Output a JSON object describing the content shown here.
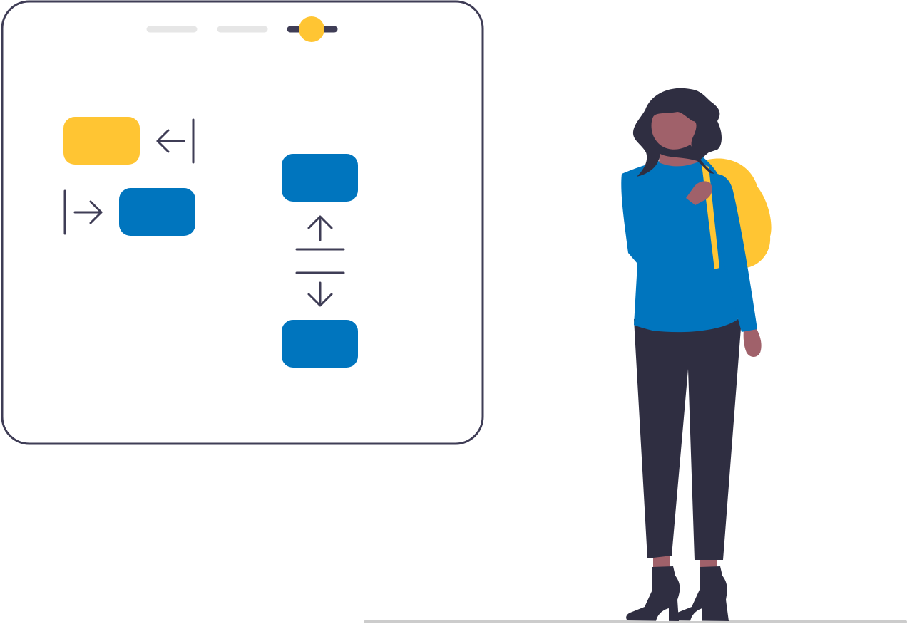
{
  "colors": {
    "frame_stroke": "#3f3d56",
    "frame_fill": "#ffffff",
    "accent_yellow": "#ffc533",
    "accent_blue": "#0075be",
    "muted_gray": "#e6e6e6",
    "dark_ink": "#2f2e41",
    "skin": "#a0616a",
    "floor": "#cccccc"
  },
  "illustration": {
    "board": {
      "slider": {
        "segments": 3,
        "active_segment": 3
      },
      "blocks": [
        {
          "id": "yellow-block",
          "color": "accent_yellow"
        },
        {
          "id": "blue-block-left",
          "color": "accent_blue"
        },
        {
          "id": "blue-block-top",
          "color": "accent_blue"
        },
        {
          "id": "blue-block-bottom",
          "color": "accent_blue"
        }
      ],
      "icons": [
        "arrow-left-to-bar-icon",
        "arrow-right-from-bar-icon",
        "arrow-up-from-line-icon",
        "arrow-down-from-line-icon"
      ]
    },
    "figure": {
      "role": "person-standing"
    }
  }
}
